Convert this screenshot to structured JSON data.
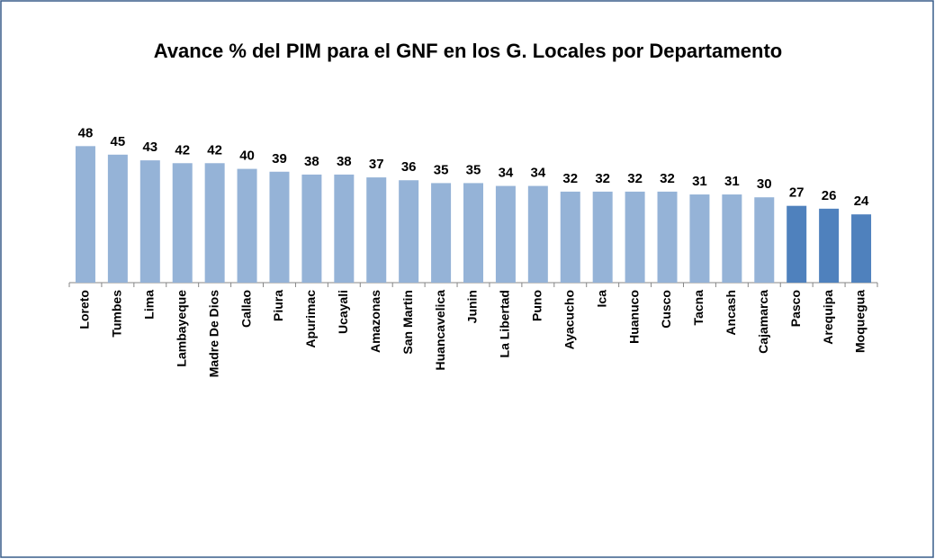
{
  "chart_data": {
    "type": "bar",
    "title": "Avance % del PIM para el GNF en los G. Locales por Departamento",
    "categories": [
      "Loreto",
      "Tumbes",
      "Lima",
      "Lambayeque",
      "Madre De Dios",
      "Callao",
      "Piura",
      "Apurimac",
      "Ucayali",
      "Amazonas",
      "San Martin",
      "Huancavelica",
      "Junin",
      "La Libertad",
      "Puno",
      "Ayacucho",
      "Ica",
      "Huanuco",
      "Cusco",
      "Tacna",
      "Ancash",
      "Cajamarca",
      "Pasco",
      "Arequipa",
      "Moquegua"
    ],
    "values": [
      48,
      45,
      43,
      42,
      42,
      40,
      39,
      38,
      38,
      37,
      36,
      35,
      35,
      34,
      34,
      32,
      32,
      32,
      32,
      31,
      31,
      30,
      27,
      26,
      24
    ],
    "colors": [
      "#95b3d7",
      "#95b3d7",
      "#95b3d7",
      "#95b3d7",
      "#95b3d7",
      "#95b3d7",
      "#95b3d7",
      "#95b3d7",
      "#95b3d7",
      "#95b3d7",
      "#95b3d7",
      "#95b3d7",
      "#95b3d7",
      "#95b3d7",
      "#95b3d7",
      "#95b3d7",
      "#95b3d7",
      "#95b3d7",
      "#95b3d7",
      "#95b3d7",
      "#95b3d7",
      "#95b3d7",
      "#4f81bd",
      "#4f81bd",
      "#4f81bd"
    ],
    "ylim": [
      0,
      50
    ],
    "grid": false
  }
}
